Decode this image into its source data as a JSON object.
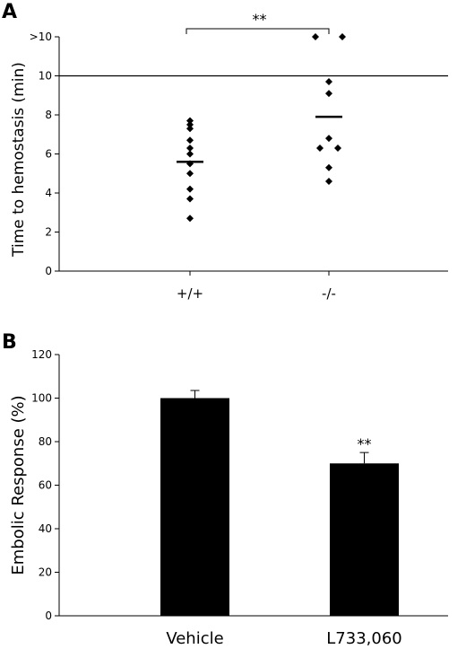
{
  "chart_data": [
    {
      "type": "scatter",
      "panel": "A",
      "ylabel": "Time to hemostasis (min)",
      "ylim": [
        0,
        12
      ],
      "yticks": [
        {
          "value": 0,
          "label": "0"
        },
        {
          "value": 2,
          "label": "2"
        },
        {
          "value": 4,
          "label": "4"
        },
        {
          "value": 6,
          "label": "6"
        },
        {
          "value": 8,
          "label": "8"
        },
        {
          "value": 10,
          "label": "10"
        },
        {
          "value": 12,
          "label": ">10"
        }
      ],
      "reference_line": 10,
      "categories": [
        "+/+",
        "-/-"
      ],
      "series": [
        {
          "category": "+/+",
          "values": [
            7.7,
            7.5,
            7.3,
            6.7,
            6.3,
            6.0,
            5.5,
            5.0,
            4.2,
            3.7,
            2.7
          ],
          "mean": 5.6
        },
        {
          "category": "-/-",
          "values": [
            12.0,
            12.0,
            9.7,
            9.1,
            6.8,
            6.3,
            6.3,
            5.3,
            4.6
          ],
          "x_offsets": [
            -0.3,
            0.3,
            0,
            0,
            0,
            -0.2,
            0.2,
            0,
            0
          ],
          "mean": 7.9
        }
      ],
      "significance": {
        "between": [
          "+/+",
          "-/-"
        ],
        "label": "**"
      }
    },
    {
      "type": "bar",
      "panel": "B",
      "ylabel": "Embolic Response (%)",
      "ylim": [
        0,
        120
      ],
      "yticks": [
        0,
        20,
        40,
        60,
        80,
        100,
        120
      ],
      "categories": [
        "Vehicle",
        "L733,060"
      ],
      "values": [
        100,
        70
      ],
      "errors": [
        3.5,
        5
      ],
      "annotations": [
        {
          "category": "L733,060",
          "label": "**"
        }
      ],
      "bar_color": "#000000"
    }
  ]
}
